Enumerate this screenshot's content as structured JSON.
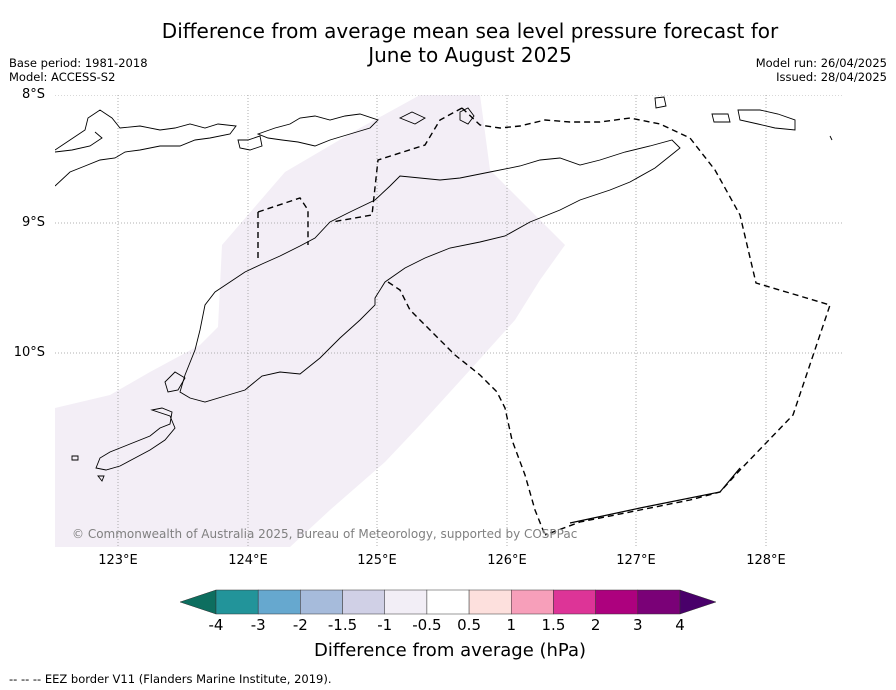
{
  "title_line1": "Difference from average mean sea level pressure forecast for",
  "title_line2": "June to August 2025",
  "meta": {
    "base_period": "Base period: 1981-2018",
    "model": "Model: ACCESS-S2",
    "model_run": "Model run: 26/04/2025",
    "issued": "Issued: 28/04/2025"
  },
  "map": {
    "lat_labels": [
      "8°S",
      "9°S",
      "10°S"
    ],
    "lon_labels": [
      "123°E",
      "124°E",
      "125°E",
      "126°E",
      "127°E",
      "128°E"
    ],
    "copyright": "© Commonwealth of Australia 2025, Bureau of Meteorology, supported by COSPPac",
    "anomaly_fill_color": "#f3eef6",
    "anomaly_band": "-1 to -0.5"
  },
  "colorbar": {
    "ticks": [
      "-4",
      "-3",
      "-2",
      "-1.5",
      "-1",
      "-0.5",
      "0.5",
      "1",
      "1.5",
      "2",
      "3",
      "4"
    ],
    "colors": [
      "#0d6e5f",
      "#22949a",
      "#66a8cf",
      "#a6bbdb",
      "#d0d0e6",
      "#f2eef6",
      "#ffffff",
      "#fde0dd",
      "#f79fba",
      "#dd3497",
      "#ad017e",
      "#7a0177",
      "#49006a"
    ],
    "label": "Difference from average (hPa)"
  },
  "footnote": "--  --  -- EEZ border V11 (Flanders Marine Institute, 2019)."
}
